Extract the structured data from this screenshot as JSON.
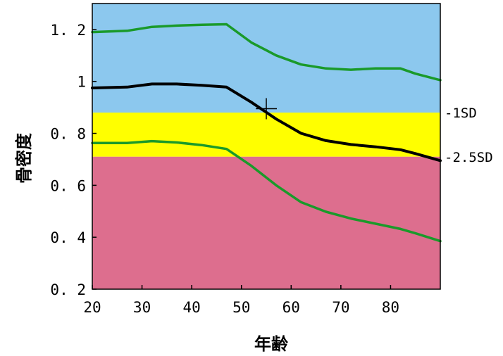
{
  "chart_data": {
    "type": "line",
    "title": "",
    "xlabel": "年齢",
    "ylabel": "骨密度",
    "xlim": [
      20,
      90
    ],
    "ylim": [
      0.2,
      1.3
    ],
    "x_ticks": [
      {
        "value": 20,
        "label": "20"
      },
      {
        "value": 30,
        "label": "30"
      },
      {
        "value": 40,
        "label": "40"
      },
      {
        "value": 50,
        "label": "50"
      },
      {
        "value": 60,
        "label": "60"
      },
      {
        "value": 70,
        "label": "70"
      },
      {
        "value": 80,
        "label": "80"
      }
    ],
    "y_ticks": [
      {
        "value": 0.2,
        "label": "0. 2"
      },
      {
        "value": 0.4,
        "label": "0. 4"
      },
      {
        "value": 0.6,
        "label": "0. 6"
      },
      {
        "value": 0.8,
        "label": "0. 8"
      },
      {
        "value": 1.0,
        "label": "1"
      },
      {
        "value": 1.2,
        "label": "1. 2"
      }
    ],
    "bands": [
      {
        "from": 0.88,
        "to": 1.3,
        "color": "#8cc8ee"
      },
      {
        "from": 0.71,
        "to": 0.88,
        "color": "#ffff00"
      },
      {
        "from": 0.2,
        "to": 0.71,
        "color": "#dd6e8e"
      }
    ],
    "threshold_labels": [
      {
        "y": 0.88,
        "label": "-1SD"
      },
      {
        "y": 0.71,
        "label": "-2.5SD"
      }
    ],
    "series": [
      {
        "color": "#1a9a2a",
        "points": [
          [
            20,
            1.19
          ],
          [
            27,
            1.195
          ],
          [
            32,
            1.21
          ],
          [
            37,
            1.215
          ],
          [
            42,
            1.218
          ],
          [
            47,
            1.22
          ],
          [
            52,
            1.15
          ],
          [
            57,
            1.1
          ],
          [
            62,
            1.065
          ],
          [
            67,
            1.05
          ],
          [
            72,
            1.045
          ],
          [
            77,
            1.05
          ],
          [
            82,
            1.05
          ],
          [
            85,
            1.03
          ],
          [
            90,
            1.005
          ]
        ]
      },
      {
        "color": "#000000",
        "points": [
          [
            20,
            0.975
          ],
          [
            27,
            0.978
          ],
          [
            32,
            0.99
          ],
          [
            37,
            0.99
          ],
          [
            42,
            0.985
          ],
          [
            47,
            0.978
          ],
          [
            52,
            0.92
          ],
          [
            57,
            0.855
          ],
          [
            62,
            0.8
          ],
          [
            67,
            0.772
          ],
          [
            72,
            0.757
          ],
          [
            77,
            0.748
          ],
          [
            82,
            0.737
          ],
          [
            85,
            0.722
          ],
          [
            90,
            0.695
          ]
        ]
      },
      {
        "color": "#1a9a2a",
        "points": [
          [
            20,
            0.763
          ],
          [
            27,
            0.763
          ],
          [
            32,
            0.77
          ],
          [
            37,
            0.765
          ],
          [
            42,
            0.755
          ],
          [
            47,
            0.74
          ],
          [
            52,
            0.675
          ],
          [
            57,
            0.6
          ],
          [
            62,
            0.535
          ],
          [
            67,
            0.498
          ],
          [
            72,
            0.472
          ],
          [
            77,
            0.452
          ],
          [
            82,
            0.432
          ],
          [
            85,
            0.415
          ],
          [
            90,
            0.385
          ]
        ]
      }
    ],
    "marker": {
      "x": 55,
      "y": 0.895,
      "shape": "cross"
    }
  }
}
